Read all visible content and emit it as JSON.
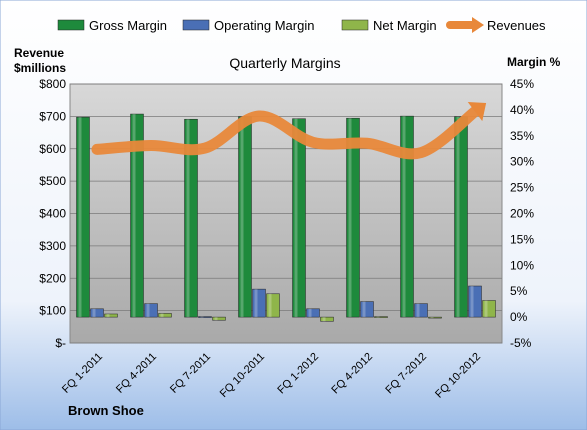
{
  "chart_data": {
    "type": "bar",
    "title": "Quarterly Margins",
    "left_axis_label": [
      "Revenue",
      "$millions"
    ],
    "right_axis_label": "Margin %",
    "footer_label": "Brown Shoe",
    "categories": [
      "FQ 1-2011",
      "FQ 4-2011",
      "FQ 7-2011",
      "FQ 10-2011",
      "FQ 1-2012",
      "FQ 4-2012",
      "FQ 7-2012",
      "FQ 10-2012"
    ],
    "left_ylim": [
      0,
      800
    ],
    "left_ticks": [
      "$-",
      "$100",
      "$200",
      "$300",
      "$400",
      "$500",
      "$600",
      "$700",
      "$800"
    ],
    "right_ylim": [
      -5,
      45
    ],
    "right_ticks": [
      "-5%",
      "0%",
      "5%",
      "10%",
      "15%",
      "20%",
      "25%",
      "30%",
      "35%",
      "40%",
      "45%"
    ],
    "series": [
      {
        "name": "Gross Margin",
        "kind": "bar",
        "axis": "right",
        "color": "#1e8a3c",
        "values": [
          38.6,
          39.2,
          38.2,
          38.7,
          38.3,
          38.4,
          38.8,
          38.7
        ]
      },
      {
        "name": "Operating Margin",
        "kind": "bar",
        "axis": "right",
        "color": "#4a6fb5",
        "values": [
          1.6,
          2.6,
          0.1,
          5.4,
          1.6,
          3.0,
          2.6,
          6.0
        ]
      },
      {
        "name": "Net Margin",
        "kind": "bar",
        "axis": "right",
        "color": "#8fb54a",
        "values": [
          0.6,
          0.7,
          -0.6,
          4.5,
          -0.8,
          0.1,
          -0.1,
          3.2
        ]
      },
      {
        "name": "Revenues",
        "kind": "line",
        "axis": "left",
        "color": "#e8883a",
        "values": [
          598,
          610,
          602,
          701,
          620,
          617,
          588,
          715
        ]
      }
    ],
    "grid": true,
    "legend_position": "top"
  }
}
